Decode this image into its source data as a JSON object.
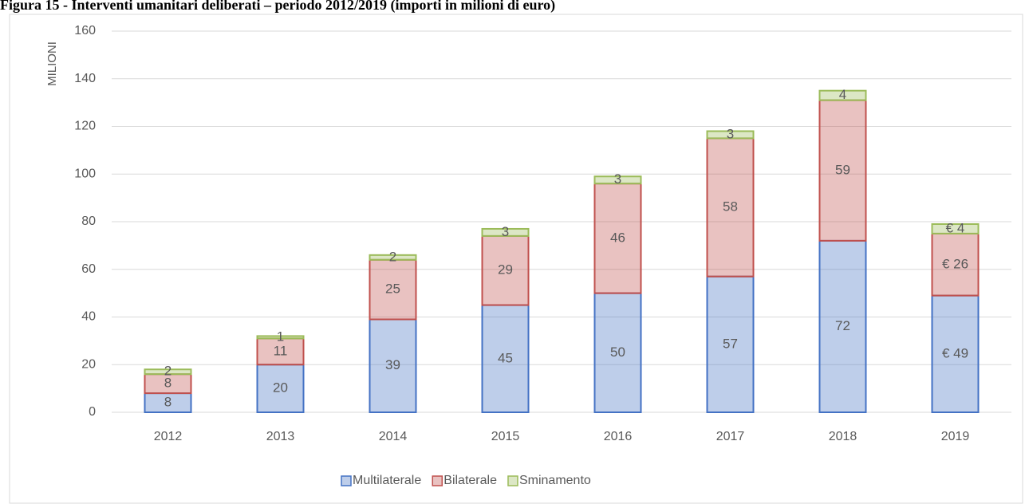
{
  "chart_data": {
    "type": "stacked_bar",
    "title": "Figura 15 - Interventi umanitari deliberati – periodo 2012/2019 (importi in milioni di euro)",
    "y_label": "MILIONI",
    "categories": [
      "2012",
      "2013",
      "2014",
      "2015",
      "2016",
      "2017",
      "2018",
      "2019"
    ],
    "series": [
      {
        "name": "Multilaterale",
        "color": "#4472c4",
        "values": [
          8,
          20,
          39,
          45,
          50,
          57,
          72,
          49
        ],
        "value_labels": [
          "8",
          "20",
          "39",
          "45",
          "50",
          "57",
          "72",
          "€ 49"
        ]
      },
      {
        "name": "Bilaterale",
        "color": "#c0504d",
        "values": [
          8,
          11,
          25,
          29,
          46,
          58,
          59,
          26
        ],
        "value_labels": [
          "8",
          "11",
          "25",
          "29",
          "46",
          "58",
          "59",
          "€ 26"
        ]
      },
      {
        "name": "Sminamento",
        "color": "#9bbb59",
        "values": [
          2,
          1,
          2,
          3,
          3,
          3,
          4,
          4
        ],
        "value_labels": [
          "2",
          "1",
          "2",
          "3",
          "3",
          "3",
          "4",
          "€ 4"
        ]
      }
    ],
    "ylim": [
      0,
      160
    ],
    "yticks": [
      0,
      20,
      40,
      60,
      80,
      100,
      120,
      140,
      160
    ],
    "grid": true,
    "legend": "bottom"
  }
}
